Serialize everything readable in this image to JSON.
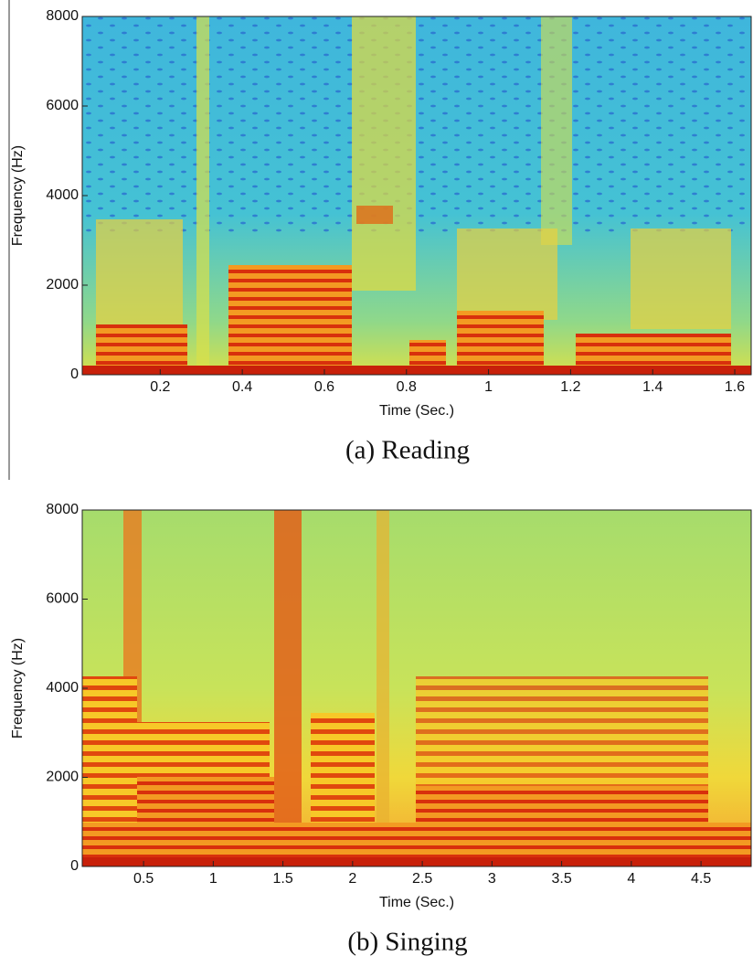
{
  "chart_data": [
    {
      "type": "spectrogram",
      "title": "(a) Reading",
      "xlabel": "Time (Sec.)",
      "ylabel": "Frequency (Hz)",
      "xlim": [
        0.01,
        1.64
      ],
      "ylim": [
        0,
        8000
      ],
      "xticks": [
        0.2,
        0.4,
        0.6,
        0.8,
        1,
        1.2,
        1.4,
        1.6
      ],
      "yticks": [
        0,
        2000,
        4000,
        6000,
        8000
      ]
    },
    {
      "type": "spectrogram",
      "title": "(b) Singing",
      "xlabel": "Time (Sec.)",
      "ylabel": "Frequency (Hz)",
      "xlim": [
        0.06,
        4.86
      ],
      "ylim": [
        0,
        8000
      ],
      "xticks": [
        0.5,
        1,
        1.5,
        2,
        2.5,
        3,
        3.5,
        4,
        4.5
      ],
      "yticks": [
        0,
        2000,
        4000,
        6000,
        8000
      ]
    }
  ]
}
